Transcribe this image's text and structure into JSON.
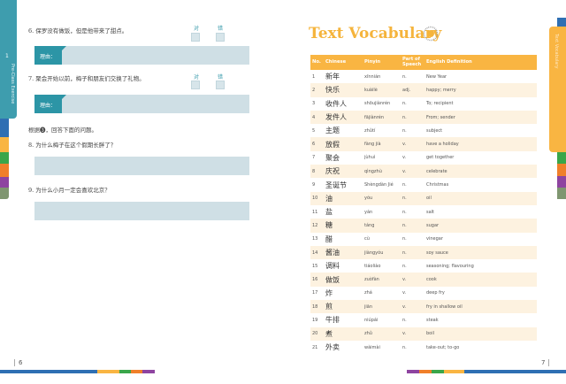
{
  "left_page": {
    "tab_number": "1",
    "tab_label": "Pre-Class Exercise",
    "true_label": "对",
    "false_label": "错",
    "reason_label": "理由：",
    "q6": "6. 保罗没有做饭，但是他带来了甜点。",
    "q7": "7. 聚会开始以前，梅子和朋友们交换了礼物。",
    "instruction": "根据❸，回答下面的问题。",
    "q8": "8. 为什么梅子在这个假期长胖了？",
    "q9": "9. 为什么小月一定会喜欢北京？",
    "page_number": "6"
  },
  "right_page": {
    "title": "Text Vocabulary",
    "tab_label": "Text Vocabulary",
    "page_number": "7",
    "headers": [
      "No.",
      "Chinese",
      "Pinyin",
      "Part of Speech",
      "English Definition"
    ],
    "rows": [
      [
        "1",
        "新年",
        "xīnnián",
        "n.",
        "New Year"
      ],
      [
        "2",
        "快乐",
        "kuàilè",
        "adj.",
        "happy; merry"
      ],
      [
        "3",
        "收件人",
        "shōujiànrén",
        "n.",
        "To; recipient"
      ],
      [
        "4",
        "发件人",
        "fājiànrén",
        "n.",
        "From; sender"
      ],
      [
        "5",
        "主题",
        "zhǔtí",
        "n.",
        "subject"
      ],
      [
        "6",
        "放假",
        "fàng jià",
        "v.",
        "have a holiday"
      ],
      [
        "7",
        "聚会",
        "jùhuì",
        "v.",
        "get together"
      ],
      [
        "8",
        "庆祝",
        "qìngzhù",
        "v.",
        "celebrate"
      ],
      [
        "9",
        "圣诞节",
        "Shèngdàn Jié",
        "n.",
        "Christmas"
      ],
      [
        "10",
        "油",
        "yóu",
        "n.",
        "oil"
      ],
      [
        "11",
        "盐",
        "yán",
        "n.",
        "salt"
      ],
      [
        "12",
        "糖",
        "táng",
        "n.",
        "sugar"
      ],
      [
        "13",
        "醋",
        "cù",
        "n.",
        "vinegar"
      ],
      [
        "14",
        "酱油",
        "jiàngyóu",
        "n.",
        "soy sauce"
      ],
      [
        "15",
        "调料",
        "tiáoliào",
        "n.",
        "seasoning; flavouring"
      ],
      [
        "16",
        "做饭",
        "zuòfàn",
        "v.",
        "cook"
      ],
      [
        "17",
        "炸",
        "zhá",
        "v.",
        "deep fry"
      ],
      [
        "18",
        "煎",
        "jiān",
        "v.",
        "fry in shallow oil"
      ],
      [
        "19",
        "牛排",
        "niúpái",
        "n.",
        "steak"
      ],
      [
        "20",
        "煮",
        "zhǔ",
        "v.",
        "boil"
      ],
      [
        "21",
        "外卖",
        "wàimài",
        "n.",
        "take-out; to-go"
      ]
    ]
  },
  "colors": {
    "teal": "#3e9dae",
    "orange": "#f9b542",
    "blue": "#2f6fb3",
    "green": "#3aa64a",
    "orange2": "#f07f2a",
    "purple": "#8e44a0",
    "olive": "#7f9670"
  }
}
